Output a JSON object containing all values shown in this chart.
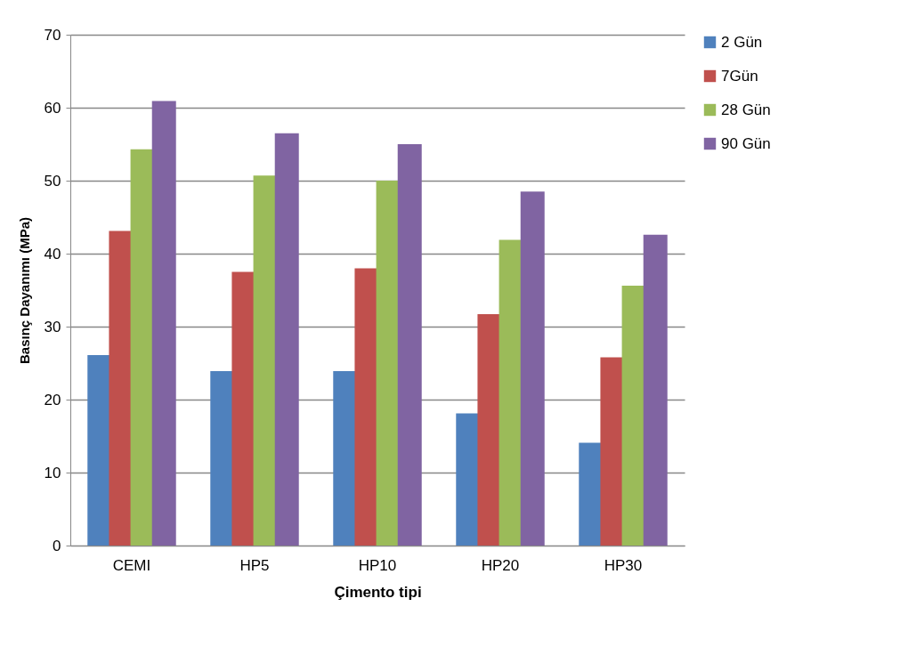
{
  "chart_data": {
    "type": "bar",
    "xlabel": "Çimento tipi",
    "ylabel": "Basınç Dayanımı  (MPa)",
    "categories": [
      "CEMI",
      "HP5",
      "HP10",
      "HP20",
      "HP30"
    ],
    "series": [
      {
        "name": "2 Gün",
        "color": "#4f81bd",
        "values": [
          26.1,
          23.9,
          23.9,
          18.1,
          14.1
        ]
      },
      {
        "name": "7Gün",
        "color": "#c0504d",
        "values": [
          43.1,
          37.5,
          38.0,
          31.7,
          25.8
        ]
      },
      {
        "name": "28 Gün",
        "color": "#9bbb59",
        "values": [
          54.3,
          50.7,
          50.0,
          41.9,
          35.6
        ]
      },
      {
        "name": "90 Gün",
        "color": "#8064a2",
        "values": [
          60.9,
          56.5,
          55.0,
          48.5,
          42.6
        ]
      }
    ],
    "ylim": [
      0,
      70
    ],
    "yticks": [
      0,
      10,
      20,
      30,
      40,
      50,
      60,
      70
    ],
    "grid": "y",
    "legend": "right"
  }
}
